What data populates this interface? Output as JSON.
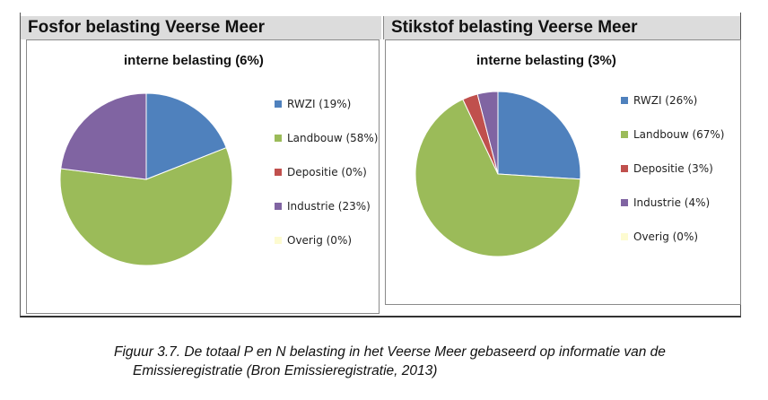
{
  "chart_data": [
    {
      "type": "pie",
      "title": "Fosfor belasting Veerse Meer",
      "subtitle": "interne belasting (6%)",
      "categories": [
        "RWZI",
        "Landbouw",
        "Depositie",
        "Industrie",
        "Overig"
      ],
      "values": [
        19,
        58,
        0,
        23,
        0
      ],
      "legend_labels": [
        "RWZI (19%)",
        "Landbouw (58%)",
        "Depositie (0%)",
        "Industrie (23%)",
        "Overig (0%)"
      ],
      "colors": [
        "#4f81bd",
        "#9bbb59",
        "#c0504d",
        "#8064a2",
        "#fdfbd0"
      ],
      "legend": "right"
    },
    {
      "type": "pie",
      "title": "Stikstof belasting Veerse Meer",
      "subtitle": "interne belasting (3%)",
      "categories": [
        "RWZI",
        "Landbouw",
        "Depositie",
        "Industrie",
        "Overig"
      ],
      "values": [
        26,
        67,
        3,
        4,
        0
      ],
      "legend_labels": [
        "RWZI (26%)",
        "Landbouw (67%)",
        "Depositie (3%)",
        "Industrie (4%)",
        "Overig (0%)"
      ],
      "colors": [
        "#4f81bd",
        "#9bbb59",
        "#c0504d",
        "#8064a2",
        "#fdfbd0"
      ],
      "legend": "right"
    }
  ],
  "caption": {
    "line1": "Figuur 3.7. De totaal P en N belasting in het Veerse Meer gebaseerd op informatie van de",
    "line2": "Emissieregistratie (Bron Emissieregistratie, 2013)"
  }
}
